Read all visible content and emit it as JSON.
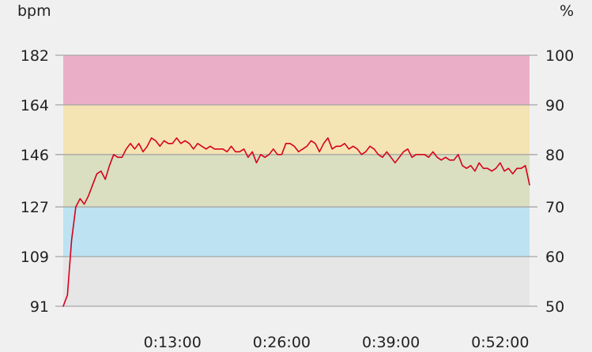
{
  "chart_data": {
    "type": "line",
    "title": "",
    "left_unit": "bpm",
    "right_unit": "%",
    "x_ticks": [
      {
        "t": 780,
        "label": "0:13:00"
      },
      {
        "t": 1560,
        "label": "0:26:00"
      },
      {
        "t": 2340,
        "label": "0:39:00"
      },
      {
        "t": 3120,
        "label": "0:52:00"
      }
    ],
    "x_range_seconds": [
      0,
      3330
    ],
    "left_ticks": [
      91,
      109,
      127,
      146,
      164,
      182
    ],
    "right_ticks": [
      50,
      60,
      70,
      80,
      90,
      100
    ],
    "ylim": [
      91,
      182
    ],
    "zones": [
      {
        "from": 91,
        "to": 109,
        "color": "#e6e6e6"
      },
      {
        "from": 109,
        "to": 127,
        "color": "#bde2f1"
      },
      {
        "from": 127,
        "to": 146,
        "color": "#d9dfc0"
      },
      {
        "from": 146,
        "to": 164,
        "color": "#f4e3b3"
      },
      {
        "from": 164,
        "to": 182,
        "color": "#ebaec7"
      }
    ],
    "line_color": "#d6001c",
    "grid_color": "#a6a6a6",
    "series": [
      {
        "name": "",
        "x": [
          0,
          30,
          60,
          90,
          120,
          150,
          180,
          210,
          240,
          270,
          300,
          330,
          360,
          390,
          420,
          450,
          480,
          510,
          540,
          570,
          600,
          630,
          660,
          690,
          720,
          750,
          780,
          810,
          840,
          870,
          900,
          930,
          960,
          990,
          1020,
          1050,
          1080,
          1110,
          1140,
          1170,
          1200,
          1230,
          1260,
          1290,
          1320,
          1350,
          1380,
          1410,
          1440,
          1470,
          1500,
          1530,
          1560,
          1590,
          1620,
          1650,
          1680,
          1710,
          1740,
          1770,
          1800,
          1830,
          1860,
          1890,
          1920,
          1950,
          1980,
          2010,
          2040,
          2070,
          2100,
          2130,
          2160,
          2190,
          2220,
          2250,
          2280,
          2310,
          2340,
          2370,
          2400,
          2430,
          2460,
          2490,
          2520,
          2550,
          2580,
          2610,
          2640,
          2670,
          2700,
          2730,
          2760,
          2790,
          2820,
          2850,
          2880,
          2910,
          2940,
          2970,
          3000,
          3030,
          3060,
          3090,
          3120,
          3150,
          3180,
          3210,
          3240,
          3270,
          3300,
          3330
        ],
        "values": [
          91,
          95,
          115,
          127,
          130,
          128,
          131,
          135,
          139,
          140,
          137,
          142,
          146,
          145,
          145,
          148,
          150,
          148,
          150,
          147,
          149,
          152,
          151,
          149,
          151,
          150,
          150,
          152,
          150,
          151,
          150,
          148,
          150,
          149,
          148,
          149,
          148,
          148,
          148,
          147,
          149,
          147,
          147,
          148,
          145,
          147,
          143,
          146,
          145,
          146,
          148,
          146,
          146,
          150,
          150,
          149,
          147,
          148,
          149,
          151,
          150,
          147,
          150,
          152,
          148,
          149,
          149,
          150,
          148,
          149,
          148,
          146,
          147,
          149,
          148,
          146,
          145,
          147,
          145,
          143,
          145,
          147,
          148,
          145,
          146,
          146,
          146,
          145,
          147,
          145,
          144,
          145,
          144,
          144,
          146,
          142,
          141,
          142,
          140,
          143,
          141,
          141,
          140,
          141,
          143,
          140,
          141,
          139,
          141,
          141,
          142,
          135
        ]
      }
    ]
  }
}
